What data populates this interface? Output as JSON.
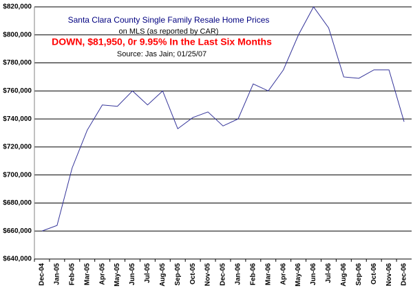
{
  "chart_data": {
    "type": "line",
    "title": "Santa Clara County Single Family Resale Home Prices",
    "subtitle": "on MLS (as reported by CAR)",
    "annotations": [
      {
        "text": "DOWN, $81,950, 0r 9.95% In the Last Six  Months",
        "color": "#ff0000"
      },
      {
        "text": "Source: Jas Jain; 01/25/07",
        "color": "#000000"
      }
    ],
    "categories": [
      "Dec-04",
      "Jan-05",
      "Feb-05",
      "Mar-05",
      "Apr-05",
      "May-05",
      "Jun-05",
      "Jul-05",
      "Aug-05",
      "Sep-05",
      "Oct-05",
      "Nov-05",
      "Dec-05",
      "Jan-06",
      "Feb-06",
      "Mar-06",
      "Apr-06",
      "May-06",
      "Jun-06",
      "Jul-06",
      "Aug-06",
      "Sep-06",
      "Oct-06",
      "Nov-06",
      "Dec-06"
    ],
    "values": [
      660000,
      664000,
      705000,
      732000,
      750000,
      749000,
      760000,
      750000,
      760000,
      733000,
      741000,
      745000,
      735000,
      740000,
      765000,
      760000,
      775000,
      800000,
      820000,
      805000,
      770000,
      769000,
      775000,
      775000,
      738000
    ],
    "color": "#333399",
    "ylim": [
      640000,
      820000
    ],
    "yticks": [
      {
        "value": 640000,
        "label": "$640,000"
      },
      {
        "value": 660000,
        "label": "$660,000"
      },
      {
        "value": 680000,
        "label": "$680,000"
      },
      {
        "value": 700000,
        "label": "$700,000"
      },
      {
        "value": 720000,
        "label": "$720,000"
      },
      {
        "value": 740000,
        "label": "$740,000"
      },
      {
        "value": 760000,
        "label": "$760,000"
      },
      {
        "value": 780000,
        "label": "$780,000"
      },
      {
        "value": 800000,
        "label": "$800,000"
      },
      {
        "value": 820000,
        "label": "$820,000"
      }
    ],
    "grid": true
  }
}
